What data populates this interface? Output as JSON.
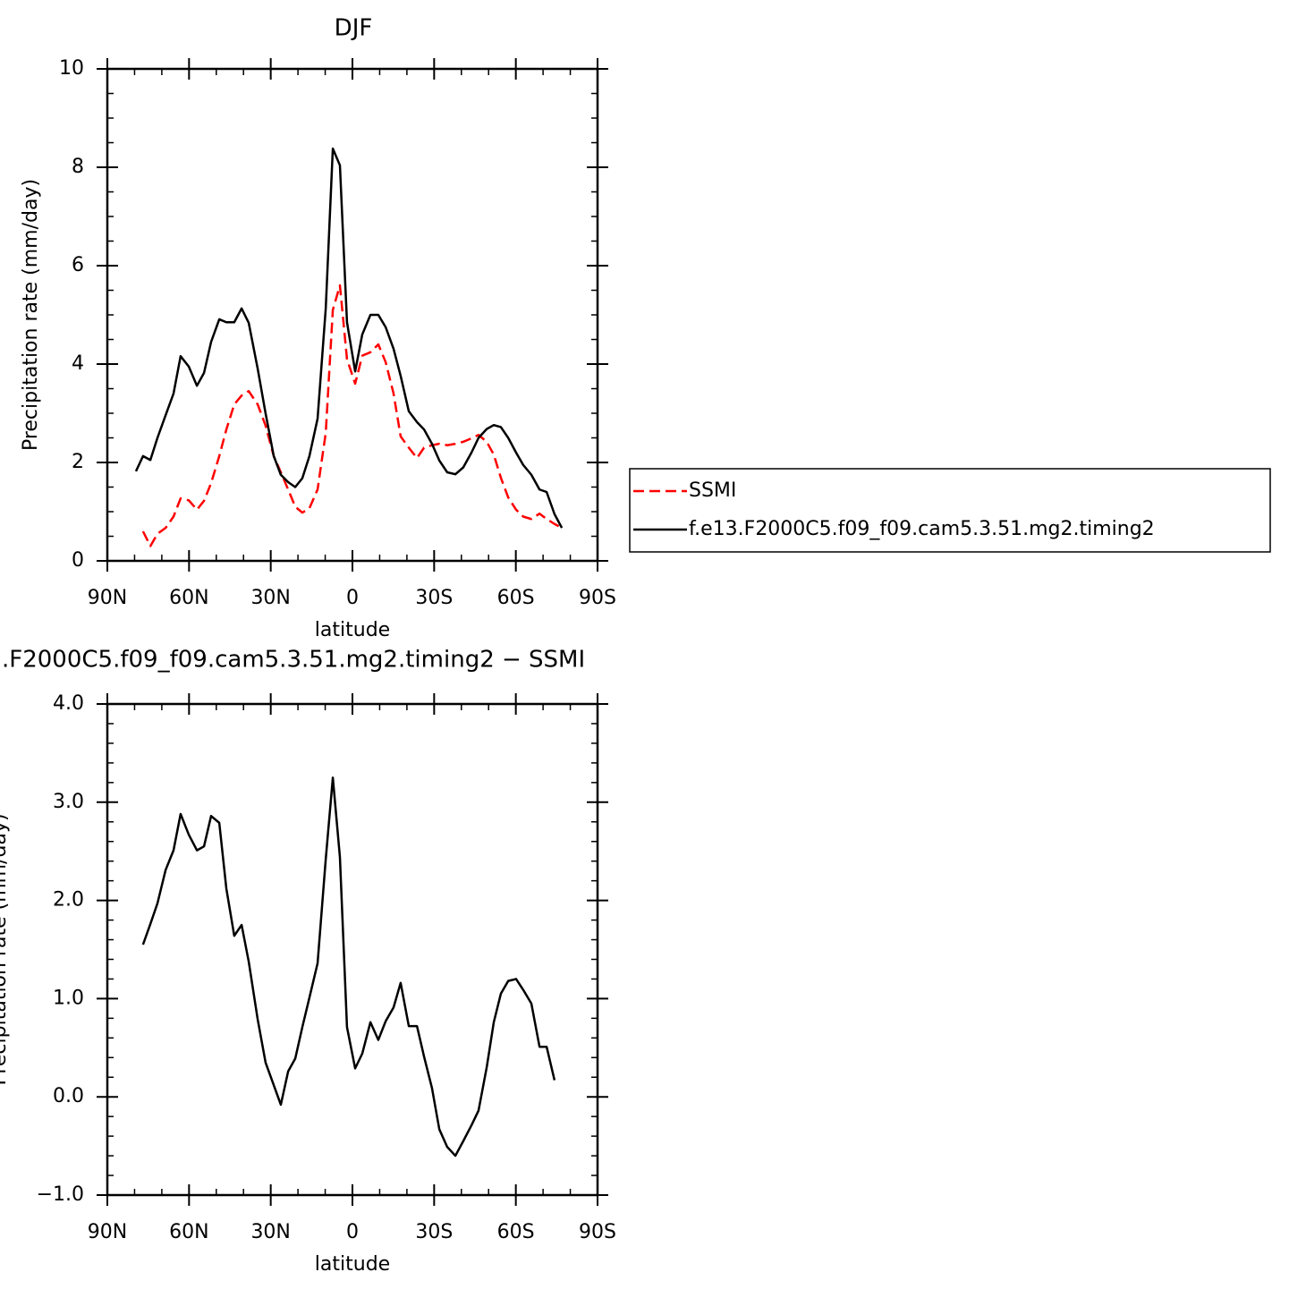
{
  "chart_data": [
    {
      "type": "line",
      "title": "DJF",
      "xlabel": "latitude",
      "ylabel": "Precipitation rate (mm/day)",
      "x": [
        79.5,
        76.9,
        74.2,
        71.6,
        68.6,
        65.7,
        63.1,
        60.1,
        57.1,
        54.5,
        51.9,
        48.9,
        46.3,
        43.4,
        40.7,
        38.1,
        34.8,
        31.9,
        28.9,
        26.3,
        23.6,
        21.0,
        18.4,
        15.8,
        12.8,
        9.8,
        7.2,
        4.6,
        2.0,
        -1.0,
        -3.6,
        -6.6,
        -9.5,
        -12.2,
        -15.1,
        -17.7,
        -20.7,
        -23.7,
        -26.3,
        -29.2,
        -31.9,
        -34.8,
        -37.8,
        -40.7,
        -43.7,
        -46.3,
        -49.3,
        -51.9,
        -54.5,
        -57.2,
        -60.1,
        -62.7,
        -65.7,
        -68.7,
        -71.3,
        -74.2,
        -76.9
      ],
      "series": [
        {
          "name": "SSMI",
          "color": "#ff0000",
          "dashed": true,
          "values": [
            null,
            0.6,
            0.3,
            0.55,
            0.67,
            0.9,
            1.27,
            1.23,
            1.04,
            1.22,
            1.58,
            2.13,
            2.67,
            3.18,
            3.36,
            3.45,
            3.18,
            2.75,
            2.13,
            1.8,
            1.45,
            1.1,
            0.98,
            1.07,
            1.45,
            2.6,
            5.1,
            5.6,
            4.1,
            3.6,
            4.17,
            4.24,
            4.4,
            4.04,
            3.4,
            2.53,
            2.3,
            2.09,
            2.3,
            2.35,
            2.38,
            2.35,
            2.38,
            2.42,
            2.49,
            2.56,
            2.42,
            2.16,
            1.69,
            1.29,
            1.04,
            0.9,
            0.85,
            0.96,
            0.85,
            0.75,
            0.67
          ]
        },
        {
          "name": "f.e13.F2000C5.f09_f09.cam5.3.51.mg2.timing2",
          "color": "#000000",
          "dashed": false,
          "values": [
            1.82,
            2.13,
            2.05,
            2.5,
            2.96,
            3.4,
            4.16,
            3.95,
            3.56,
            3.82,
            4.45,
            4.91,
            4.85,
            4.85,
            5.13,
            4.84,
            3.91,
            3.0,
            2.13,
            1.75,
            1.6,
            1.5,
            1.68,
            2.13,
            2.89,
            5.13,
            8.38,
            8.04,
            4.85,
            3.85,
            4.6,
            5.0,
            5.0,
            4.75,
            4.31,
            3.76,
            3.04,
            2.82,
            2.67,
            2.38,
            2.04,
            1.8,
            1.76,
            1.9,
            2.2,
            2.5,
            2.68,
            2.76,
            2.72,
            2.5,
            2.2,
            1.95,
            1.75,
            1.45,
            1.4,
            0.95,
            0.67
          ]
        }
      ],
      "xlim": [
        90,
        -90
      ],
      "xticks": [
        {
          "value": 90,
          "label": "90N"
        },
        {
          "value": 60,
          "label": "60N"
        },
        {
          "value": 30,
          "label": "30N"
        },
        0,
        {
          "value": -30,
          "label": "30S"
        },
        {
          "value": -60,
          "label": "60S"
        },
        {
          "value": -90,
          "label": "90S"
        }
      ],
      "ylim": [
        0,
        10
      ],
      "yticks": [
        0,
        2,
        4,
        6,
        8,
        10
      ],
      "legend": "right"
    },
    {
      "type": "line",
      "title": ".F2000C5.f09_f09.cam5.3.51.mg2.timing2 − SSMI",
      "xlabel": "latitude",
      "ylabel": "Precipitation rate (mm/day)",
      "x": [
        79.5,
        76.9,
        74.2,
        71.6,
        68.6,
        65.7,
        63.1,
        60.1,
        57.1,
        54.5,
        51.9,
        48.9,
        46.3,
        43.4,
        40.7,
        38.1,
        34.8,
        31.9,
        28.9,
        26.3,
        23.6,
        21.0,
        18.4,
        15.8,
        12.8,
        9.8,
        7.2,
        4.6,
        2.0,
        -1.0,
        -3.6,
        -6.6,
        -9.5,
        -12.2,
        -15.1,
        -17.7,
        -20.7,
        -23.7,
        -26.3,
        -29.2,
        -31.9,
        -34.8,
        -37.8,
        -40.7,
        -43.7,
        -46.3,
        -49.3,
        -51.9,
        -54.5,
        -57.2,
        -60.1,
        -62.7,
        -65.7,
        -68.7,
        -71.3,
        -74.2,
        -76.9
      ],
      "series": [
        {
          "color": "#000000",
          "dashed": false,
          "values": [
            null,
            1.55,
            1.76,
            1.97,
            2.31,
            2.51,
            2.88,
            2.67,
            2.51,
            2.55,
            2.86,
            2.79,
            2.12,
            1.64,
            1.75,
            1.38,
            0.79,
            0.35,
            0.12,
            -0.08,
            0.26,
            0.39,
            0.71,
            1.01,
            1.36,
            2.42,
            3.25,
            2.44,
            0.71,
            0.29,
            0.44,
            0.76,
            0.58,
            0.77,
            0.91,
            1.16,
            0.72,
            0.72,
            0.41,
            0.09,
            -0.33,
            -0.51,
            -0.6,
            -0.45,
            -0.29,
            -0.14,
            0.3,
            0.76,
            1.05,
            1.18,
            1.2,
            1.09,
            0.95,
            0.51,
            0.51,
            0.17,
            null
          ]
        }
      ],
      "xlim": [
        90,
        -90
      ],
      "xticks": [
        {
          "value": 90,
          "label": "90N"
        },
        {
          "value": 60,
          "label": "60N"
        },
        {
          "value": 30,
          "label": "30N"
        },
        0,
        {
          "value": -30,
          "label": "30S"
        },
        {
          "value": -60,
          "label": "60S"
        },
        {
          "value": -90,
          "label": "90S"
        }
      ],
      "ylim": [
        -1,
        4
      ],
      "yticks": [
        {
          "value": -1,
          "label": "−1.0"
        },
        {
          "value": 0,
          "label": "0.0"
        },
        {
          "value": 1,
          "label": "1.0"
        },
        {
          "value": 2,
          "label": "2.0"
        },
        {
          "value": 3,
          "label": "3.0"
        },
        {
          "value": 4,
          "label": "4.0"
        }
      ]
    }
  ]
}
